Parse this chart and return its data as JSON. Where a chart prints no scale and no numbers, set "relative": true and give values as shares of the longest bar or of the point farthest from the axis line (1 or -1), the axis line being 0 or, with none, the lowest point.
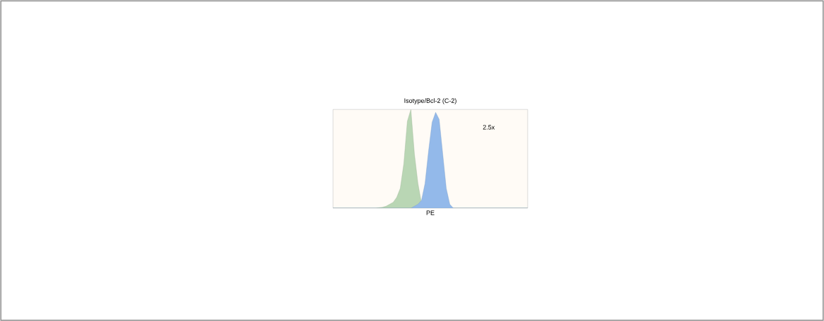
{
  "chart_data": {
    "type": "area",
    "relative": true,
    "title": "Isotype/Bcl-2 (C-2)",
    "xlabel": "PE",
    "annotations": [
      "2.5x"
    ],
    "categories": [
      null,
      null,
      null,
      null,
      null,
      null,
      null,
      null,
      null,
      null,
      null,
      null,
      null,
      null,
      null,
      null,
      null,
      null,
      null,
      null,
      null,
      null,
      null,
      null,
      null,
      null,
      null,
      null,
      null,
      null,
      null,
      null,
      null,
      null,
      null,
      null,
      null,
      null,
      null,
      null,
      null,
      null,
      null,
      null,
      null,
      null,
      null,
      null,
      null,
      null,
      null,
      null,
      null,
      null,
      null,
      null
    ],
    "series": [
      {
        "color": "#b9d6b4",
        "values": [
          0,
          0,
          0,
          0,
          0,
          0,
          0,
          0,
          0,
          0,
          0,
          0,
          0,
          0.005,
          0.01,
          0.02,
          0.04,
          0.06,
          0.11,
          0.2,
          0.45,
          0.88,
          1.0,
          0.55,
          0.25,
          0.05,
          0,
          0,
          0,
          0,
          0,
          0,
          0,
          0,
          0,
          0,
          0,
          0,
          0,
          0,
          0,
          0,
          0,
          0,
          0,
          0,
          0,
          0,
          0,
          0,
          0,
          0,
          0,
          0,
          0,
          0
        ]
      },
      {
        "color": "#93b9ea",
        "values": [
          0,
          0,
          0,
          0,
          0,
          0,
          0,
          0,
          0,
          0,
          0,
          0,
          0,
          0,
          0,
          0,
          0,
          0,
          0,
          0,
          0,
          0,
          0,
          0.02,
          0.04,
          0.08,
          0.25,
          0.58,
          0.87,
          0.97,
          0.9,
          0.55,
          0.2,
          0.04,
          0,
          0,
          0,
          0,
          0,
          0,
          0,
          0,
          0,
          0,
          0,
          0,
          0,
          0,
          0,
          0,
          0,
          0,
          0,
          0,
          0,
          0
        ]
      }
    ]
  }
}
